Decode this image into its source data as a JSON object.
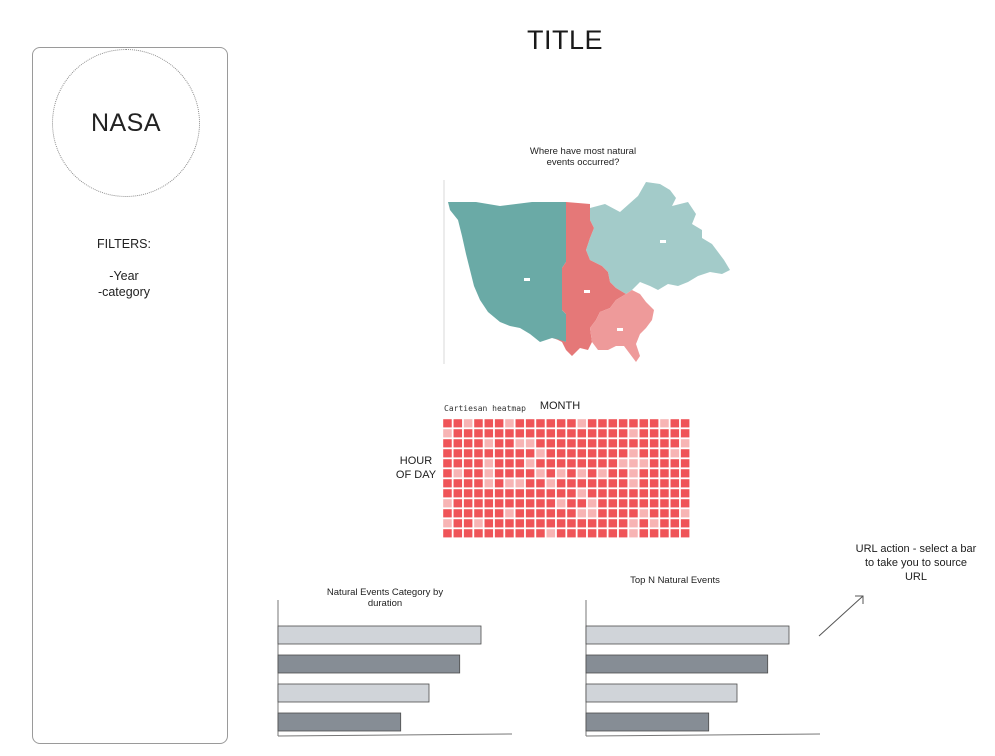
{
  "page": {
    "title": "TITLE"
  },
  "sidebar": {
    "logo_text": "NASA",
    "filters_heading": "FILTERS:",
    "filter_items": [
      "-Year",
      "-category"
    ]
  },
  "map": {
    "caption_line1": "Where have most natural",
    "caption_line2": "events occurred?",
    "regions": [
      {
        "name": "west",
        "color": "#6aaaa6"
      },
      {
        "name": "central",
        "color": "#e57878"
      },
      {
        "name": "southeast",
        "color": "#ee9a9a"
      },
      {
        "name": "northeast",
        "color": "#a3cbc9"
      }
    ]
  },
  "heatmap": {
    "note": "Cartiesan heatmap",
    "x_label": "MONTH",
    "y_label_line1": "HOUR",
    "y_label_line2": "OF DAY",
    "cols": 24,
    "rows": 12,
    "base_color": "#ef5458",
    "light_color": "#f7b4b4"
  },
  "chart_data": [
    {
      "type": "bar",
      "title": "Natural Events Category by duration",
      "orientation": "horizontal",
      "values": [
        0.86,
        0.77,
        0.64,
        0.52
      ],
      "colors": [
        "#d0d4d9",
        "#868d95",
        "#d0d4d9",
        "#868d95"
      ]
    },
    {
      "type": "bar",
      "title": "Top N Natural Events",
      "orientation": "horizontal",
      "values": [
        0.86,
        0.77,
        0.64,
        0.52
      ],
      "colors": [
        "#d0d4d9",
        "#868d95",
        "#d0d4d9",
        "#868d95"
      ]
    }
  ],
  "annotation": {
    "url_line1": "URL action - select a bar",
    "url_line2": "to take you to source",
    "url_line3": "URL"
  }
}
